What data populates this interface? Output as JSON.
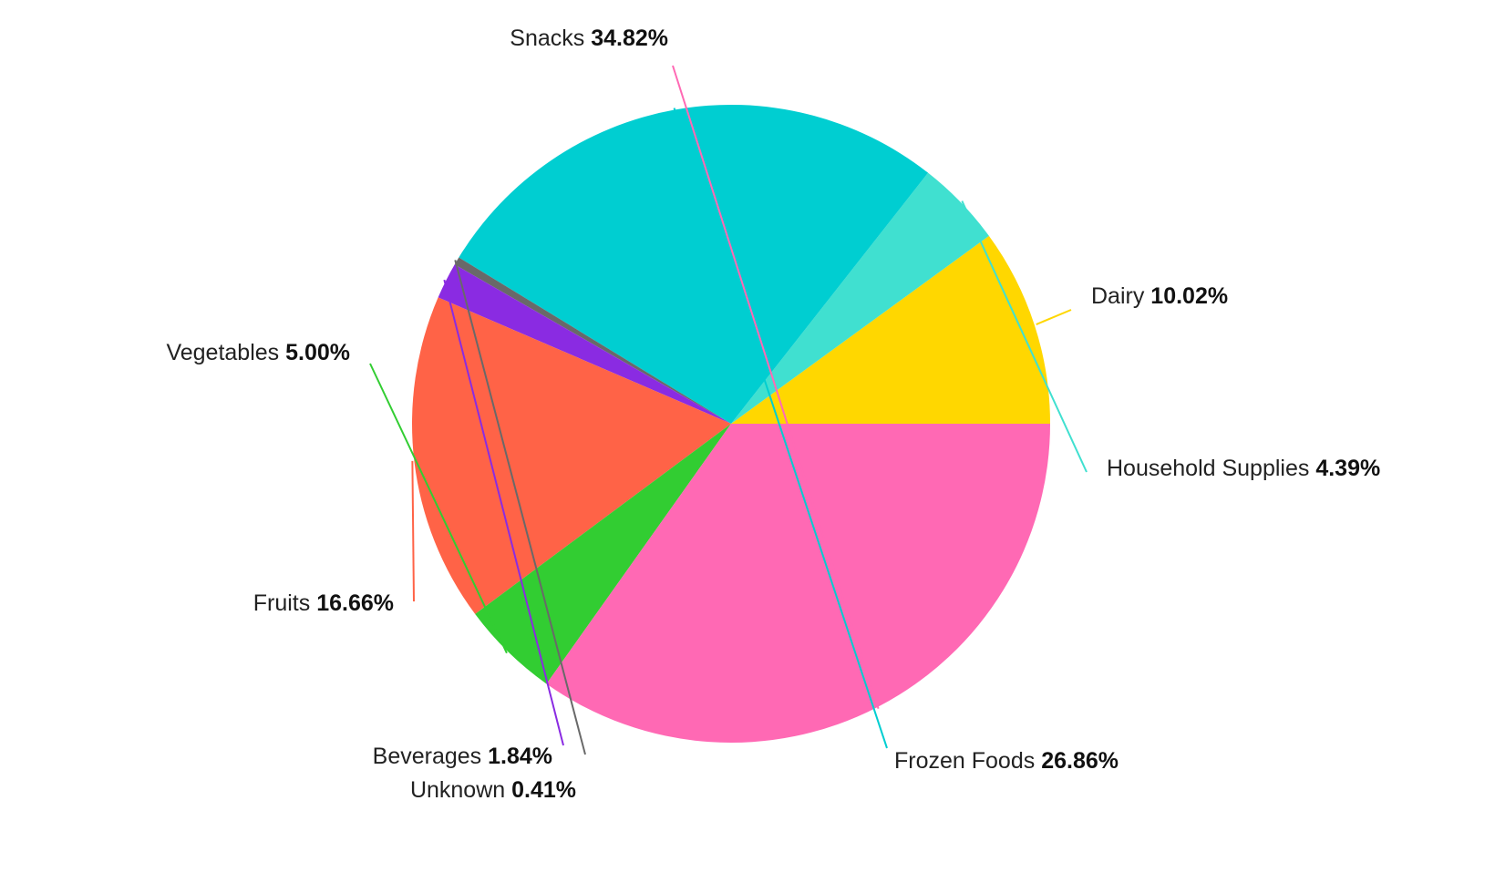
{
  "chart_data": {
    "type": "pie",
    "title": "",
    "legend": "none",
    "slices": [
      {
        "label": "Dairy",
        "value": 10.02,
        "display": "10.02%",
        "color": "#FFD700"
      },
      {
        "label": "Household Supplies",
        "value": 4.39,
        "display": "4.39%",
        "color": "#40E0D0"
      },
      {
        "label": "Frozen Foods",
        "value": 26.86,
        "display": "26.86%",
        "color": "#00CED1"
      },
      {
        "label": "Unknown",
        "value": 0.41,
        "display": "0.41%",
        "color": "#696969"
      },
      {
        "label": "Beverages",
        "value": 1.84,
        "display": "1.84%",
        "color": "#8A2BE2"
      },
      {
        "label": "Fruits",
        "value": 16.66,
        "display": "16.66%",
        "color": "#FF6347"
      },
      {
        "label": "Vegetables",
        "value": 5.0,
        "display": "5.00%",
        "color": "#32CD32"
      },
      {
        "label": "Snacks",
        "value": 34.82,
        "display": "34.82%",
        "color": "#FF69B4"
      }
    ]
  }
}
